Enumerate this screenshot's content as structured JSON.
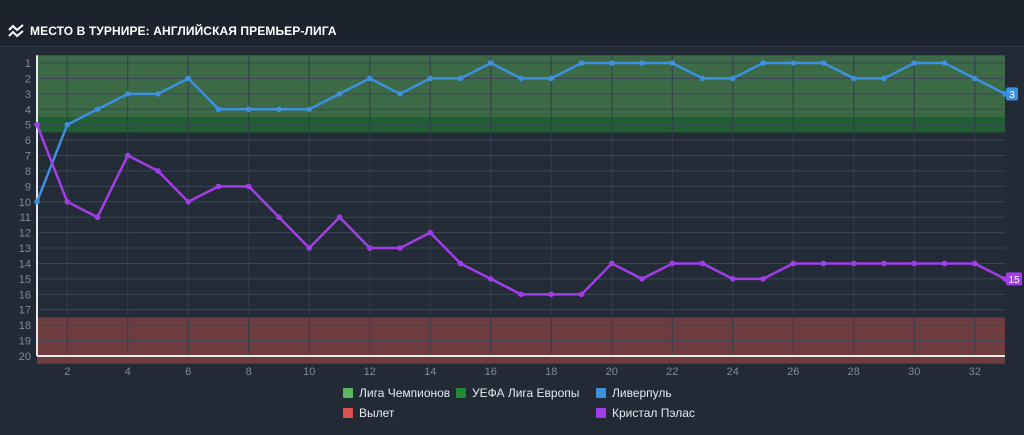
{
  "header": {
    "title": "МЕСТО В ТУРНИРЕ: АНГЛИЙСКАЯ ПРЕМЬЕР-ЛИГА",
    "icon": "trend-lines-icon"
  },
  "chart_data": {
    "type": "line",
    "title": "МЕСТО В ТУРНИРЕ: АНГЛИЙСКАЯ ПРЕМЬЕР-ЛИГА",
    "xlabel": "",
    "ylabel": "",
    "xlim": [
      1,
      33
    ],
    "ylim": [
      1,
      20
    ],
    "y_inverted": true,
    "x_ticks": [
      "2",
      "4",
      "6",
      "8",
      "10",
      "12",
      "14",
      "16",
      "18",
      "20",
      "22",
      "24",
      "26",
      "28",
      "30",
      "32"
    ],
    "y_ticks": [
      "1",
      "2",
      "3",
      "4",
      "5",
      "6",
      "7",
      "8",
      "9",
      "10",
      "11",
      "12",
      "13",
      "14",
      "15",
      "16",
      "17",
      "18",
      "19",
      "20"
    ],
    "grid": true,
    "legend_position": "bottom",
    "zones": [
      {
        "name": "Лига Чемпионов",
        "from": 1,
        "to": 4,
        "color": "#5cb85c"
      },
      {
        "name": "УЕФА Лига Европы",
        "from": 5,
        "to": 5,
        "color": "#1f8a30"
      },
      {
        "name": "Вылет",
        "from": 18,
        "to": 20,
        "color": "#d9534f"
      }
    ],
    "x": [
      1,
      2,
      3,
      4,
      5,
      6,
      7,
      8,
      9,
      10,
      11,
      12,
      13,
      14,
      15,
      16,
      17,
      18,
      19,
      20,
      21,
      22,
      23,
      24,
      25,
      26,
      27,
      28,
      29,
      30,
      31,
      32,
      33
    ],
    "series": [
      {
        "name": "Ливерпуль",
        "color": "#3d8fe0",
        "end_label": "3",
        "values": [
          10,
          5,
          4,
          3,
          3,
          2,
          4,
          4,
          4,
          4,
          3,
          2,
          3,
          2,
          2,
          1,
          2,
          2,
          1,
          1,
          1,
          1,
          2,
          2,
          1,
          1,
          1,
          2,
          2,
          1,
          1,
          2,
          3
        ]
      },
      {
        "name": "Кристал Пэлас",
        "color": "#a23ee8",
        "end_label": "15",
        "values": [
          5,
          10,
          11,
          7,
          8,
          10,
          9,
          9,
          11,
          13,
          11,
          13,
          13,
          12,
          14,
          15,
          16,
          16,
          16,
          14,
          15,
          14,
          14,
          15,
          15,
          14,
          14,
          14,
          14,
          14,
          14,
          14,
          15
        ]
      }
    ]
  },
  "legend": [
    {
      "label": "Лига Чемпионов",
      "color": "#5cb85c"
    },
    {
      "label": "УЕФА Лига Европы",
      "color": "#1f8a30"
    },
    {
      "label": "Ливерпуль",
      "color": "#3d8fe0"
    },
    {
      "label": "Вылет",
      "color": "#d9534f"
    },
    {
      "label": "Кристал Пэлас",
      "color": "#a23ee8"
    }
  ]
}
